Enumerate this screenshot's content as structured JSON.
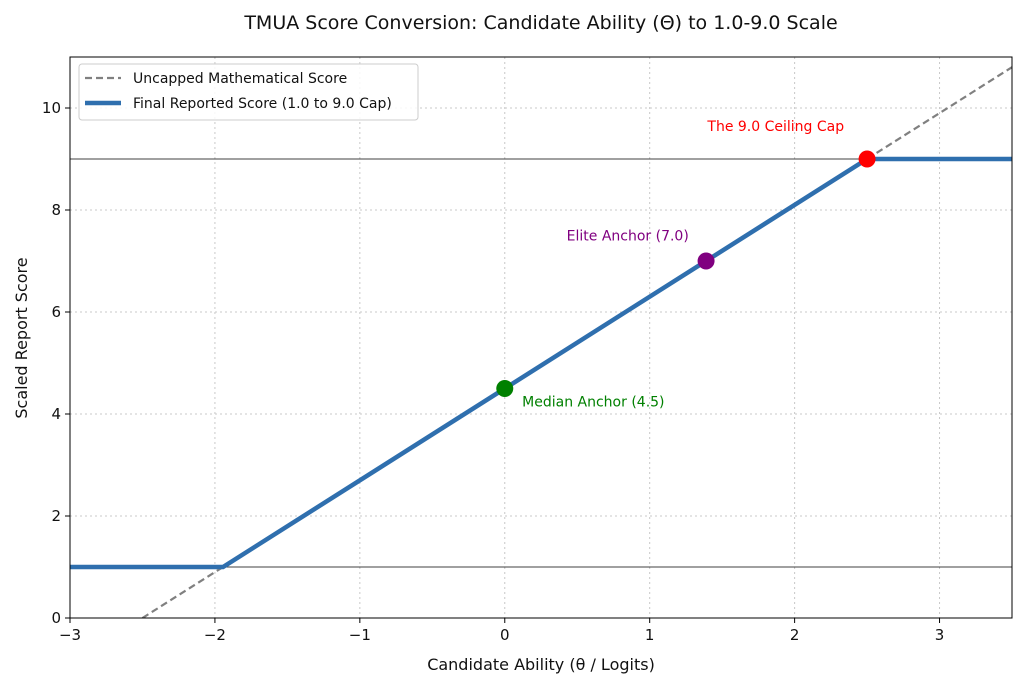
{
  "chart_data": {
    "type": "line",
    "title": "TMUA Score Conversion: Candidate Ability (Θ) to 1.0-9.0 Scale",
    "xlabel": "Candidate Ability (θ / Logits)",
    "ylabel": "Scaled Report Score",
    "xlim": [
      -3,
      3.5
    ],
    "ylim": [
      0,
      11
    ],
    "xticks": [
      -3,
      -2,
      -1,
      0,
      1,
      2,
      3
    ],
    "xtick_labels": [
      "−3",
      "−2",
      "−1",
      "0",
      "1",
      "2",
      "3"
    ],
    "yticks": [
      0,
      2,
      4,
      6,
      8,
      10
    ],
    "ytick_labels": [
      "0",
      "2",
      "4",
      "6",
      "8",
      "10"
    ],
    "grid": true,
    "legend_position": "top-left",
    "series": [
      {
        "name": "Uncapped Mathematical Score",
        "style": "dashed",
        "color": "#808080",
        "x": [
          -2.5,
          3.5
        ],
        "y": [
          0,
          10.8
        ]
      },
      {
        "name": "Final Reported Score (1.0 to 9.0 Cap)",
        "style": "solid",
        "color": "#2f6fae",
        "x": [
          -3,
          -1.944,
          2.5,
          3.5
        ],
        "y": [
          1,
          1,
          9,
          9
        ]
      }
    ],
    "reference_lines": [
      {
        "y": 9,
        "color": "#000000"
      },
      {
        "y": 1,
        "color": "#000000"
      }
    ],
    "points": [
      {
        "x": 0,
        "y": 4.5,
        "color": "#008000",
        "label": "Median Anchor (4.5)",
        "label_x": 0.12,
        "label_y": 4.15,
        "anchor": "start"
      },
      {
        "x": 1.389,
        "y": 7,
        "color": "#800080",
        "label": "Elite Anchor (7.0)",
        "label_x": 1.27,
        "label_y": 7.4,
        "anchor": "end"
      },
      {
        "x": 2.5,
        "y": 9,
        "color": "#ff0000",
        "label": "The 9.0 Ceiling Cap",
        "label_x": 1.87,
        "label_y": 9.55,
        "anchor": "middle"
      }
    ]
  }
}
